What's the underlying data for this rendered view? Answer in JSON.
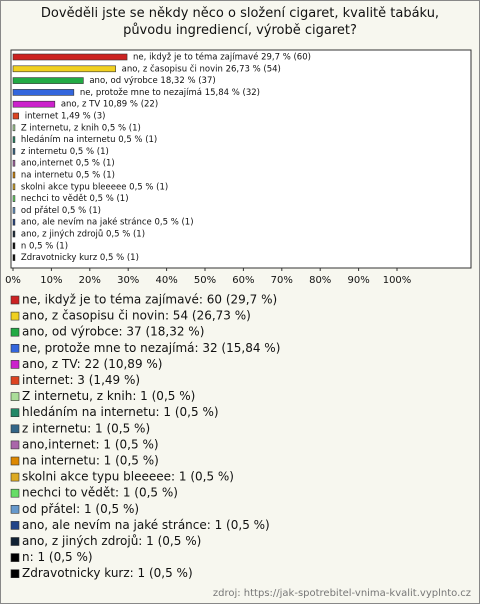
{
  "chart_data": {
    "type": "bar",
    "title": "Dověděli jste se někdy něco o složení cigaret, kvalitě tabáku, původu ingrediencí, výrobě cigaret?",
    "categories": [
      "ne, ikdyž je to téma zajímavé",
      "ano, z časopisu či novin",
      "ano, od výrobce",
      "ne, protože mne to nezajímá",
      "ano, z TV",
      "internet",
      "Z internetu, z knih",
      "hledáním na internetu",
      "z internetu",
      "ano,internet",
      "na internetu",
      "skolni akce typu bleeeee",
      "nechci to vědět",
      "od přátel",
      "ano, ale nevím na jaké stránce",
      "ano, z jiných zdrojů",
      "n",
      "Zdravotnicky kurz"
    ],
    "values": [
      29.7,
      26.73,
      18.32,
      15.84,
      10.89,
      1.49,
      0.5,
      0.5,
      0.5,
      0.5,
      0.5,
      0.5,
      0.5,
      0.5,
      0.5,
      0.5,
      0.5,
      0.5
    ],
    "bar_labels": [
      "ne, ikdyž je to téma zajímavé 29,7 % (60)",
      "ano, z časopisu či novin 26,73 % (54)",
      "ano, od výrobce 18,32 % (37)",
      "ne, protože mne to nezajímá 15,84 % (32)",
      "ano, z TV 10,89 % (22)",
      "internet 1,49 % (3)",
      "Z internetu, z knih 0,5 % (1)",
      "hledáním na internetu 0,5 % (1)",
      "z internetu 0,5 % (1)",
      "ano,internet 0,5 % (1)",
      "na internetu 0,5 % (1)",
      "skolni akce typu bleeeee 0,5 % (1)",
      "nechci to vědět 0,5 % (1)",
      "od přátel 0,5 % (1)",
      "ano, ale nevím na jaké stránce 0,5 % (1)",
      "ano, z jiných zdrojů 0,5 % (1)",
      "n 0,5 % (1)",
      "Zdravotnicky kurz 0,5 % (1)"
    ],
    "legend_labels": [
      "ne, ikdyž je to téma zajímavé: 60 (29,7 %)",
      "ano, z časopisu či novin: 54 (26,73 %)",
      "ano, od výrobce: 37 (18,32 %)",
      "ne, protože mne to nezajímá: 32 (15,84 %)",
      "ano, z TV: 22 (10,89 %)",
      "internet: 3 (1,49 %)",
      "Z internetu, z knih: 1 (0,5 %)",
      "hledáním na internetu: 1 (0,5 %)",
      "z internetu: 1 (0,5 %)",
      "ano,internet: 1 (0,5 %)",
      "na internetu: 1 (0,5 %)",
      "skolni akce typu bleeeee: 1 (0,5 %)",
      "nechci to vědět: 1 (0,5 %)",
      "od přátel: 1 (0,5 %)",
      "ano, ale nevím na jaké stránce: 1 (0,5 %)",
      "ano, z jiných zdrojů: 1 (0,5 %)",
      "n: 1 (0,5 %)",
      "Zdravotnicky kurz: 1 (0,5 %)"
    ],
    "colors": [
      "#cc2222",
      "#f0d020",
      "#22aa44",
      "#3366dd",
      "#cc22cc",
      "#dd4422",
      "#aadd99",
      "#228866",
      "#336688",
      "#aa66aa",
      "#dd8800",
      "#ddaa22",
      "#66dd66",
      "#6699cc",
      "#224488",
      "#112233",
      "#000000",
      "#000000"
    ],
    "xlim": [
      0,
      100
    ],
    "xticks": [
      {
        "value": 0,
        "label": "0%"
      },
      {
        "value": 10,
        "label": "10%"
      },
      {
        "value": 20,
        "label": "20%"
      },
      {
        "value": 30,
        "label": "30%"
      },
      {
        "value": 40,
        "label": "40%"
      },
      {
        "value": 50,
        "label": "50%"
      },
      {
        "value": 60,
        "label": "60%"
      },
      {
        "value": 70,
        "label": "70%"
      },
      {
        "value": 80,
        "label": "80%"
      },
      {
        "value": 90,
        "label": "90%"
      },
      {
        "value": 100,
        "label": "100%"
      }
    ],
    "source": "zdroj: https://jak-spotrebitel-vnima-kvalit.vyplnto.cz"
  }
}
